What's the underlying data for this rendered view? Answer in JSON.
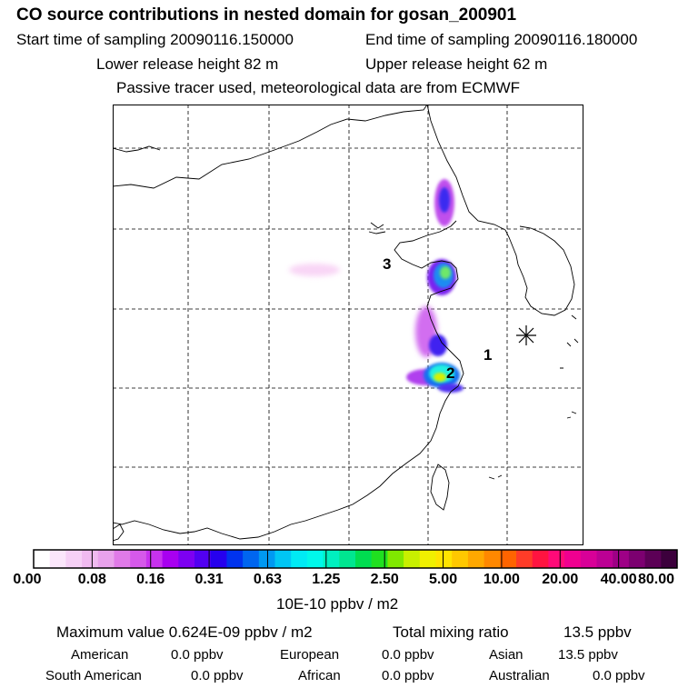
{
  "header": {
    "title": "CO  source contributions in nested domain for gosan_200901",
    "start": "Start time of sampling 20090116.150000",
    "end": "End time of sampling 20090116.180000",
    "lower": "Lower release height   82 m",
    "upper": "Upper release height   62 m",
    "info": "Passive tracer used, meteorological data are from ECMWF"
  },
  "map": {
    "labels": [
      "3",
      "1",
      "2"
    ],
    "receptor_marker": "asterisk-icon"
  },
  "colorbar": {
    "ticks": [
      "0.00",
      "0.08",
      "0.16",
      "0.31",
      "0.63",
      "1.25",
      "2.50",
      "5.00",
      "10.00",
      "20.00",
      "40.00",
      "80.00"
    ],
    "unit": "10E-10 ppbv / m2",
    "colors": [
      "#ffffff",
      "#fbe6fb",
      "#f6d0f6",
      "#f0baf0",
      "#e9a2ec",
      "#e07ae8",
      "#d659ea",
      "#c832ee",
      "#a800f0",
      "#7d00f2",
      "#5200f2",
      "#2600ee",
      "#0033ee",
      "#0066f0",
      "#0099f2",
      "#00c6f4",
      "#00eaf4",
      "#00f8ea",
      "#00f0c0",
      "#00e690",
      "#00dd50",
      "#20e020",
      "#80e800",
      "#c8f000",
      "#f0f000",
      "#ffe400",
      "#ffc800",
      "#ffa800",
      "#ff8800",
      "#ff6400",
      "#ff3c28",
      "#ff1440",
      "#ff0a78",
      "#f00090",
      "#d80098",
      "#bc0094",
      "#9e0086",
      "#7c0070",
      "#5c0056",
      "#3c003c"
    ]
  },
  "summary": {
    "max": "Maximum value  0.624E-09 ppbv / m2",
    "total_label": "Total mixing ratio",
    "total_value": "13.5 ppbv",
    "rows": [
      {
        "a_label": "American",
        "a_val": "0.0 ppbv",
        "b_label": "European",
        "b_val": "0.0 ppbv",
        "c_label": "Asian",
        "c_val": "13.5 ppbv"
      },
      {
        "a_label": "South American",
        "a_val": "0.0 ppbv",
        "b_label": "African",
        "b_val": "0.0 ppbv",
        "c_label": "Australian",
        "c_val": "0.0 ppbv"
      }
    ]
  }
}
